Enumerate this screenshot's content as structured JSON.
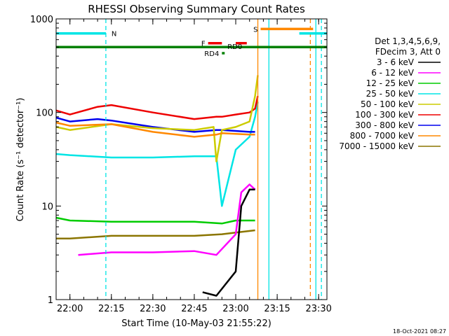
{
  "chart_data": {
    "type": "line",
    "title": "RHESSI Observing Summary Count Rates",
    "xlabel": "Start Time (10-May-03 21:55:22)",
    "ylabel": "Count Rate (s⁻¹ detector⁻¹)",
    "yscale": "log",
    "ylim": [
      1,
      1000
    ],
    "xlim": [
      "21:55",
      "23:33"
    ],
    "xticks": [
      "22:00",
      "22:15",
      "22:30",
      "22:45",
      "23:00",
      "23:15",
      "23:30"
    ],
    "yticks": [
      "1",
      "10",
      "100",
      "1000"
    ],
    "timestamp": "18-Oct-2021 08:27",
    "legend": {
      "placement": "right",
      "header": [
        "Det 1,3,4,5,6,9,",
        "FDecim 3, Att 0"
      ],
      "entries": [
        {
          "label": "3 - 6 keV",
          "color": "#000000"
        },
        {
          "label": "6 - 12 keV",
          "color": "#ff00ff"
        },
        {
          "label": "12 - 25 keV",
          "color": "#00cc00"
        },
        {
          "label": "25 - 50 keV",
          "color": "#00e5e5"
        },
        {
          "label": "50 - 100 keV",
          "color": "#cccc00"
        },
        {
          "label": "100 - 300 keV",
          "color": "#ee0000"
        },
        {
          "label": "300 - 800 keV",
          "color": "#0000ee"
        },
        {
          "label": "800 - 7000 keV",
          "color": "#ff8800"
        },
        {
          "label": "7000 - 15000 keV",
          "color": "#8b7500"
        }
      ]
    },
    "series": [
      {
        "color": "#00cc00",
        "x": [
          "21:55",
          "22:00",
          "22:15",
          "22:30",
          "22:45",
          "22:55",
          "23:00",
          "23:07"
        ],
        "values": [
          7.5,
          7.0,
          6.8,
          6.8,
          6.8,
          6.5,
          7.0,
          7.0
        ]
      },
      {
        "color": "#8b7500",
        "x": [
          "21:55",
          "22:00",
          "22:15",
          "22:30",
          "22:45",
          "22:55",
          "23:00",
          "23:07"
        ],
        "values": [
          4.5,
          4.5,
          4.8,
          4.8,
          4.8,
          5.0,
          5.2,
          5.5
        ]
      },
      {
        "color": "#ff00ff",
        "x": [
          "22:03",
          "22:15",
          "22:30",
          "22:45",
          "22:53",
          "23:00",
          "23:02",
          "23:05",
          "23:07"
        ],
        "values": [
          3.0,
          3.2,
          3.2,
          3.3,
          3.0,
          5.0,
          14,
          17,
          15
        ]
      },
      {
        "color": "#000000",
        "x": [
          "22:48",
          "22:53",
          "23:00",
          "23:02",
          "23:05",
          "23:07"
        ],
        "values": [
          1.2,
          1.1,
          2.0,
          10,
          15,
          15
        ]
      },
      {
        "color": "#00e5e5",
        "x": [
          "21:55",
          "22:00",
          "22:15",
          "22:30",
          "22:45",
          "22:53",
          "22:55",
          "23:00",
          "23:05",
          "23:07",
          "23:08"
        ],
        "values": [
          36,
          35,
          33,
          33,
          34,
          34,
          10,
          40,
          55,
          90,
          130
        ]
      },
      {
        "color": "#ee0000",
        "x": [
          "21:55",
          "22:00",
          "22:10",
          "22:15",
          "22:30",
          "22:45",
          "22:53",
          "22:55",
          "23:00",
          "23:05",
          "23:07",
          "23:08"
        ],
        "values": [
          105,
          95,
          115,
          120,
          100,
          85,
          90,
          90,
          95,
          100,
          110,
          150
        ]
      },
      {
        "color": "#0000ee",
        "x": [
          "21:55",
          "22:00",
          "22:10",
          "22:15",
          "22:30",
          "22:45",
          "22:53",
          "22:55",
          "23:05",
          "23:07"
        ],
        "values": [
          88,
          80,
          85,
          82,
          70,
          62,
          65,
          65,
          62,
          62
        ]
      },
      {
        "color": "#cccc00",
        "x": [
          "21:55",
          "22:00",
          "22:15",
          "22:30",
          "22:45",
          "22:52",
          "22:53",
          "22:55",
          "23:00",
          "23:05",
          "23:07",
          "23:08"
        ],
        "values": [
          70,
          65,
          75,
          68,
          65,
          70,
          30,
          65,
          70,
          80,
          150,
          250
        ]
      },
      {
        "color": "#ff8800",
        "x": [
          "21:55",
          "22:00",
          "22:15",
          "22:30",
          "22:45",
          "22:53",
          "22:55",
          "23:05",
          "23:07"
        ],
        "values": [
          78,
          72,
          75,
          62,
          55,
          58,
          60,
          58,
          58
        ]
      }
    ],
    "flags": [
      {
        "label": "N",
        "color": "#00e5e5",
        "x": [
          "21:55",
          "22:13"
        ],
        "y": 700
      },
      {
        "label": "",
        "color": "#00e5e5",
        "x": [
          "23:23",
          "23:33"
        ],
        "y": 700
      },
      {
        "label": "S",
        "color": "#ff8800",
        "x": [
          "23:09",
          "23:28"
        ],
        "y": 780
      },
      {
        "label": "F",
        "color": "#ee0000",
        "x": [
          "22:50",
          "22:55"
        ],
        "y": 550
      },
      {
        "label": "",
        "color": "#ee0000",
        "x": [
          "23:00",
          "23:04"
        ],
        "y": 550
      },
      {
        "label": "RD0",
        "color": "#008000",
        "x": [
          "21:55",
          "23:33"
        ],
        "y": 500
      },
      {
        "label": "RD4",
        "color": "#008000",
        "x": [
          "22:55",
          "22:56"
        ],
        "y": 430
      }
    ],
    "vlines": [
      {
        "x": "22:13",
        "color": "#00e5e5",
        "style": "dashed"
      },
      {
        "x": "23:08",
        "color": "#ff8800",
        "style": "solid"
      },
      {
        "x": "23:12",
        "color": "#00e5e5",
        "style": "solid"
      },
      {
        "x": "23:27",
        "color": "#ff8800",
        "style": "dashed"
      },
      {
        "x": "23:29",
        "color": "#00e5e5",
        "style": "solid"
      },
      {
        "x": "23:31",
        "color": "#00e5e5",
        "style": "dashed"
      }
    ]
  }
}
